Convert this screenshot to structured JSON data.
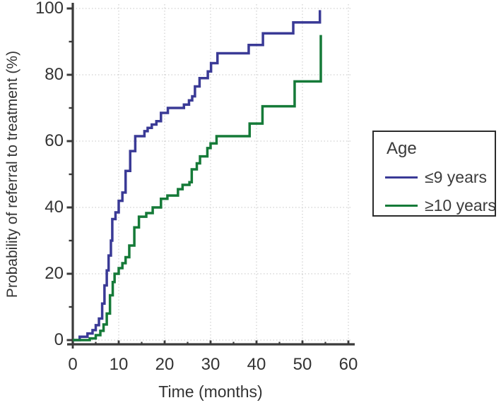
{
  "chart_data": {
    "type": "line",
    "subtype": "step-survival-curve",
    "title": "",
    "xlabel": "Time (months)",
    "ylabel": "Probability of referral to treatment (%)",
    "xlim": [
      0,
      60
    ],
    "ylim": [
      0,
      100
    ],
    "x_major_ticks": [
      0,
      10,
      20,
      30,
      40,
      50,
      60
    ],
    "x_minor_ticks": [
      5,
      15,
      25,
      35,
      45,
      55
    ],
    "y_major_ticks": [
      0,
      20,
      40,
      60,
      80,
      100
    ],
    "y_minor_ticks": [
      10,
      30,
      50,
      70,
      90
    ],
    "grid": {
      "style": "dotted",
      "on_major_ticks": true,
      "color": "#c6c6c6"
    },
    "colors": {
      "axis": "#3a3a3a",
      "text": "#333333",
      "background": "#ffffff"
    },
    "legend": {
      "title": "Age",
      "position": "outside-right"
    },
    "series": [
      {
        "name": "≤9 years",
        "color": "#3a3a96",
        "step": true,
        "points": [
          [
            0,
            0
          ],
          [
            1.5,
            1
          ],
          [
            3.2,
            2
          ],
          [
            4.3,
            3
          ],
          [
            5.0,
            4.5
          ],
          [
            5.7,
            6.5
          ],
          [
            6.4,
            11
          ],
          [
            6.9,
            16.5
          ],
          [
            7.4,
            21
          ],
          [
            7.8,
            25.5
          ],
          [
            8.3,
            30
          ],
          [
            8.6,
            36.5
          ],
          [
            9.3,
            38.5
          ],
          [
            10.0,
            42
          ],
          [
            10.8,
            44.5
          ],
          [
            11.5,
            51
          ],
          [
            12.5,
            57
          ],
          [
            13.6,
            61.5
          ],
          [
            15.6,
            63
          ],
          [
            16.3,
            64
          ],
          [
            17.2,
            65
          ],
          [
            18.2,
            66
          ],
          [
            19.2,
            68.5
          ],
          [
            20.7,
            70
          ],
          [
            24.2,
            71
          ],
          [
            25.3,
            72.3
          ],
          [
            26.0,
            73.5
          ],
          [
            26.6,
            76.5
          ],
          [
            27.6,
            79
          ],
          [
            29.4,
            81
          ],
          [
            30.1,
            83.5
          ],
          [
            31.5,
            86.5
          ],
          [
            38.3,
            89
          ],
          [
            41.4,
            92.5
          ],
          [
            48.0,
            95.8
          ],
          [
            53.8,
            99.5
          ]
        ]
      },
      {
        "name": "≥10 years",
        "color": "#157a38",
        "step": true,
        "points": [
          [
            0,
            0
          ],
          [
            3.7,
            0.5
          ],
          [
            5.0,
            1.5
          ],
          [
            6.0,
            2.8
          ],
          [
            6.7,
            4.7
          ],
          [
            7.4,
            8
          ],
          [
            8.1,
            13.5
          ],
          [
            8.7,
            17.5
          ],
          [
            9.1,
            20
          ],
          [
            10.0,
            21.7
          ],
          [
            10.8,
            23.2
          ],
          [
            11.5,
            25
          ],
          [
            12.3,
            28.5
          ],
          [
            13.4,
            34
          ],
          [
            14.4,
            37.2
          ],
          [
            16.0,
            38.3
          ],
          [
            17.4,
            40
          ],
          [
            19.2,
            42.6
          ],
          [
            20.6,
            43.6
          ],
          [
            22.9,
            45.5
          ],
          [
            23.9,
            46.8
          ],
          [
            25.4,
            47.6
          ],
          [
            25.9,
            51.5
          ],
          [
            27.0,
            53.3
          ],
          [
            27.7,
            55.4
          ],
          [
            29.3,
            57.9
          ],
          [
            30.0,
            59.3
          ],
          [
            31.3,
            61.5
          ],
          [
            38.5,
            65.3
          ],
          [
            41.3,
            70.5
          ],
          [
            48.3,
            78
          ],
          [
            54.0,
            92
          ]
        ]
      }
    ]
  }
}
